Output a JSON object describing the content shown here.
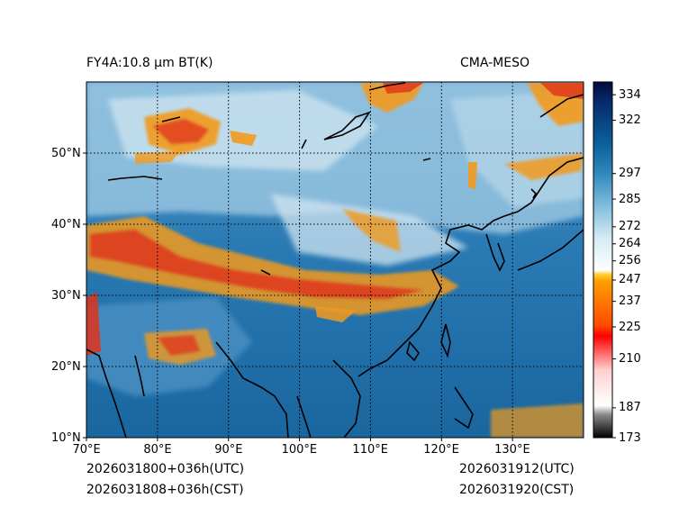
{
  "header": {
    "title_left": "FY4A:10.8 μm BT(K)",
    "title_right": "CMA-MESO"
  },
  "footer": {
    "init_utc": "2026031800+036h(UTC)",
    "init_cst": "2026031808+036h(CST)",
    "valid_utc": "2026031912(UTC)",
    "valid_cst": "2026031920(CST)"
  },
  "axes": {
    "lon_labels": [
      "70°E",
      "80°E",
      "90°E",
      "100°E",
      "110°E",
      "120°E",
      "130°E"
    ],
    "lon_values": [
      70,
      80,
      90,
      100,
      110,
      120,
      130
    ],
    "lon_range": [
      70,
      140
    ],
    "lat_labels": [
      "10°N",
      "20°N",
      "30°N",
      "40°N",
      "50°N"
    ],
    "lat_values": [
      10,
      20,
      30,
      40,
      50
    ],
    "lat_range": [
      10,
      60
    ]
  },
  "colorbar": {
    "unit": "K",
    "range": [
      173,
      340
    ],
    "tick_labels": [
      "334",
      "322",
      "297",
      "285",
      "272",
      "264",
      "256",
      "247",
      "237",
      "225",
      "210",
      "187",
      "173"
    ],
    "tick_values": [
      334,
      322,
      297,
      285,
      272,
      264,
      256,
      247,
      237,
      225,
      210,
      187,
      173
    ]
  },
  "colors": {
    "ocean_blue": "#1f6fa8",
    "land_light": "#a9cde4",
    "cloud_white": "#eef4f8",
    "cloud_orange": "#f29a1f",
    "cloud_red": "#e0321a",
    "coast": "#000000"
  }
}
